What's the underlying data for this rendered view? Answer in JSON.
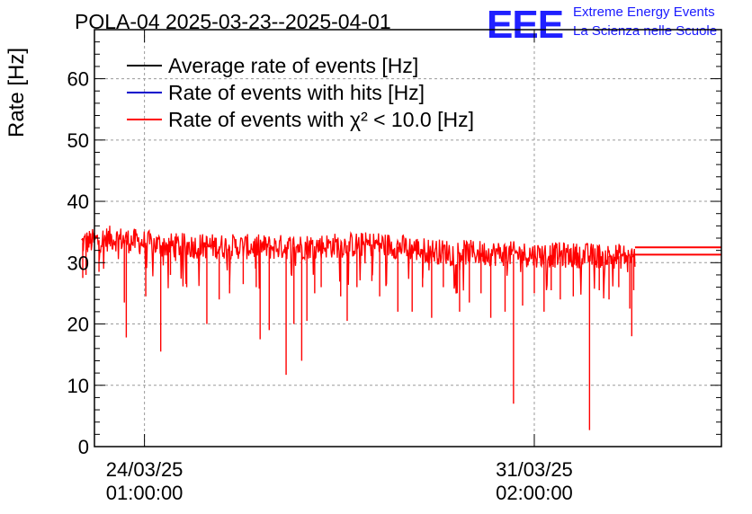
{
  "chart_data": {
    "type": "line",
    "title": "POLA-04 2025-03-23--2025-04-01",
    "ylabel": "Rate [Hz]",
    "xlabel": "",
    "ylim": [
      0,
      68
    ],
    "xlim": [
      -0.77,
      8.88
    ],
    "yticks": [
      0,
      10,
      20,
      30,
      40,
      50,
      60
    ],
    "xticks": [
      {
        "value": 0,
        "date": "24/03/25",
        "time": "01:00:00"
      },
      {
        "value": 6,
        "date": "31/03/25",
        "time": "02:00:00"
      }
    ],
    "grid": true,
    "legend_position": "top-left",
    "series": [
      {
        "name": "Average rate of events [Hz]",
        "color": "#000000",
        "baseline": 32.5,
        "x_start": -0.97,
        "x_end": 7.55,
        "flat_to": 8.88
      },
      {
        "name": "Rate of events with hits [Hz]",
        "color": "#0000cc",
        "baseline": 32.5,
        "x_start": -0.97,
        "x_end": 7.55,
        "flat_to": 8.88
      },
      {
        "name": "Rate of events with χ² < 10.0 [Hz]",
        "color": "#ff0000",
        "baseline": 32.3,
        "x_start": -0.97,
        "x_end": 7.55,
        "flat_to": 8.88
      }
    ],
    "trend": [
      {
        "x": -0.97,
        "y": 33.2
      },
      {
        "x": -0.5,
        "y": 34.0
      },
      {
        "x": 0.3,
        "y": 32.8
      },
      {
        "x": 2.0,
        "y": 32.5
      },
      {
        "x": 3.6,
        "y": 33.0
      },
      {
        "x": 4.5,
        "y": 31.8
      },
      {
        "x": 6.0,
        "y": 31.3
      },
      {
        "x": 7.55,
        "y": 31.0
      }
    ],
    "flat_levels": [
      32.5,
      31.3
    ],
    "dips": [
      {
        "x": -0.95,
        "y": 27.5
      },
      {
        "x": -0.9,
        "y": 28.0
      },
      {
        "x": -0.7,
        "y": 28.5
      },
      {
        "x": -0.31,
        "y": 23.5
      },
      {
        "x": -0.28,
        "y": 17.8
      },
      {
        "x": 0.02,
        "y": 24.5
      },
      {
        "x": 0.25,
        "y": 15.5
      },
      {
        "x": 0.4,
        "y": 28.0
      },
      {
        "x": 0.65,
        "y": 26.0
      },
      {
        "x": 0.96,
        "y": 20.0
      },
      {
        "x": 1.15,
        "y": 24.0
      },
      {
        "x": 1.31,
        "y": 25.0
      },
      {
        "x": 1.52,
        "y": 26.5
      },
      {
        "x": 1.72,
        "y": 26.0
      },
      {
        "x": 1.78,
        "y": 17.5
      },
      {
        "x": 1.92,
        "y": 19.0
      },
      {
        "x": 2.18,
        "y": 11.7
      },
      {
        "x": 2.3,
        "y": 20.0
      },
      {
        "x": 2.42,
        "y": 14.0
      },
      {
        "x": 2.5,
        "y": 20.5
      },
      {
        "x": 2.62,
        "y": 25.0
      },
      {
        "x": 2.72,
        "y": 26.0
      },
      {
        "x": 3.02,
        "y": 24.5
      },
      {
        "x": 3.12,
        "y": 20.5
      },
      {
        "x": 3.27,
        "y": 26.0
      },
      {
        "x": 3.5,
        "y": 27.0
      },
      {
        "x": 3.62,
        "y": 24.5
      },
      {
        "x": 3.9,
        "y": 22.0
      },
      {
        "x": 4.12,
        "y": 22.0
      },
      {
        "x": 4.28,
        "y": 26.0
      },
      {
        "x": 4.42,
        "y": 21.0
      },
      {
        "x": 4.6,
        "y": 26.0
      },
      {
        "x": 4.85,
        "y": 22.0
      },
      {
        "x": 5.0,
        "y": 23.5
      },
      {
        "x": 5.18,
        "y": 25.0
      },
      {
        "x": 5.33,
        "y": 21.0
      },
      {
        "x": 5.55,
        "y": 22.0
      },
      {
        "x": 5.68,
        "y": 7.0
      },
      {
        "x": 5.82,
        "y": 23.0
      },
      {
        "x": 6.0,
        "y": 25.0
      },
      {
        "x": 6.15,
        "y": 22.0
      },
      {
        "x": 6.26,
        "y": 25.5
      },
      {
        "x": 6.4,
        "y": 24.0
      },
      {
        "x": 6.6,
        "y": 24.5
      },
      {
        "x": 6.85,
        "y": 2.7
      },
      {
        "x": 7.0,
        "y": 25.5
      },
      {
        "x": 7.15,
        "y": 24.0
      },
      {
        "x": 7.3,
        "y": 26.0
      },
      {
        "x": 7.47,
        "y": 22.5
      },
      {
        "x": 7.5,
        "y": 18.0
      },
      {
        "x": 7.53,
        "y": 25.5
      }
    ]
  },
  "logo": {
    "mark": "EEE",
    "line1": "Extreme Energy Events",
    "line2": "La Scienza nelle Scuole"
  }
}
